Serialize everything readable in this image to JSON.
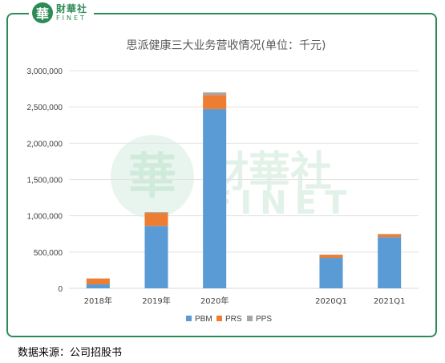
{
  "logo": {
    "seal_char": "華",
    "name_cn": "財華社",
    "name_en": "FINET"
  },
  "watermark": {
    "seal_char": "華",
    "name_cn": "財華社",
    "name_en": "FINET"
  },
  "source": "数据来源：公司招股书",
  "colors": {
    "frame": "#2e8b57",
    "PBM": "#5b9bd5",
    "PRS": "#ed7d31",
    "PPS": "#a5a5a5"
  },
  "chart_data": {
    "type": "bar",
    "stacked": true,
    "title": "思派健康三大业务营收情况(单位：千元)",
    "categories": [
      "2018年",
      "2019年",
      "2020年",
      "",
      "2020Q1",
      "2021Q1"
    ],
    "series": [
      {
        "name": "PBM",
        "values": [
          55000,
          860000,
          2470000,
          0,
          420000,
          705000
        ]
      },
      {
        "name": "PRS",
        "values": [
          80000,
          180000,
          195000,
          0,
          40000,
          40000
        ]
      },
      {
        "name": "PPS",
        "values": [
          2000,
          10000,
          35000,
          0,
          5000,
          5000
        ]
      }
    ],
    "ylim": [
      0,
      3000000
    ],
    "yticks": [
      0,
      500000,
      1000000,
      1500000,
      2000000,
      2500000,
      3000000
    ],
    "ytick_labels": [
      "0",
      "500,000",
      "1,000,000",
      "1,500,000",
      "2,000,000",
      "2,500,000",
      "3,000,000"
    ],
    "grid": true,
    "legend_position": "bottom"
  }
}
